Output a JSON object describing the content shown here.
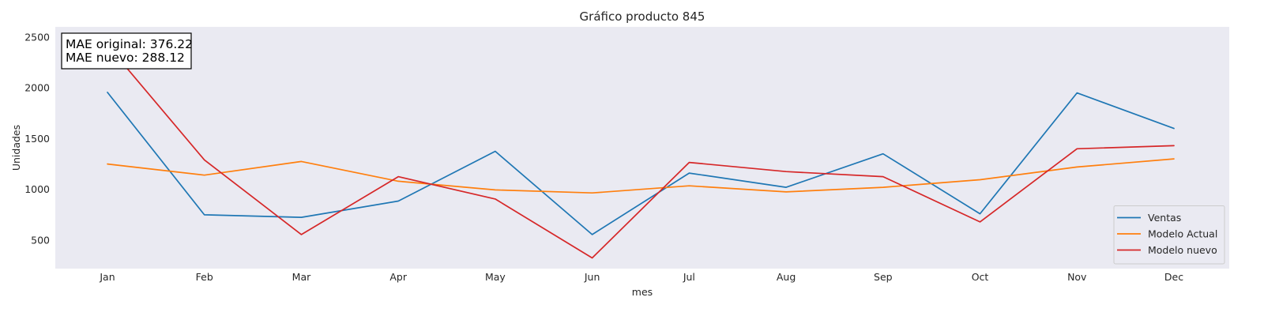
{
  "chart_data": {
    "type": "line",
    "title": "Gráfico producto 845",
    "xlabel": "mes",
    "ylabel": "Unidades",
    "categories": [
      "Jan",
      "Feb",
      "Mar",
      "Apr",
      "May",
      "Jun",
      "Jul",
      "Aug",
      "Sep",
      "Oct",
      "Nov",
      "Dec"
    ],
    "yticks": [
      500,
      1000,
      1500,
      2000,
      2500
    ],
    "ylim": [
      220,
      2600
    ],
    "grid": false,
    "legend_position": "bottom-right",
    "series": [
      {
        "name": "Ventas",
        "color": "#1f77b4",
        "values": [
          1955,
          750,
          725,
          885,
          1375,
          555,
          1160,
          1020,
          1350,
          760,
          1950,
          1600
        ]
      },
      {
        "name": "Modelo Actual",
        "color": "#ff7f0e",
        "values": [
          1250,
          1140,
          1275,
          1080,
          995,
          965,
          1035,
          975,
          1020,
          1095,
          1220,
          1300
        ]
      },
      {
        "name": "Modelo nuevo",
        "color": "#d62728",
        "values": [
          2420,
          1290,
          555,
          1125,
          905,
          325,
          1265,
          1175,
          1125,
          680,
          1400,
          1430
        ]
      }
    ],
    "annotation": {
      "lines": [
        "MAE original: 376.22",
        "MAE nuevo: 288.12"
      ]
    }
  },
  "colors": {
    "plot_background": "#eaeaf2",
    "text": "#262626"
  }
}
